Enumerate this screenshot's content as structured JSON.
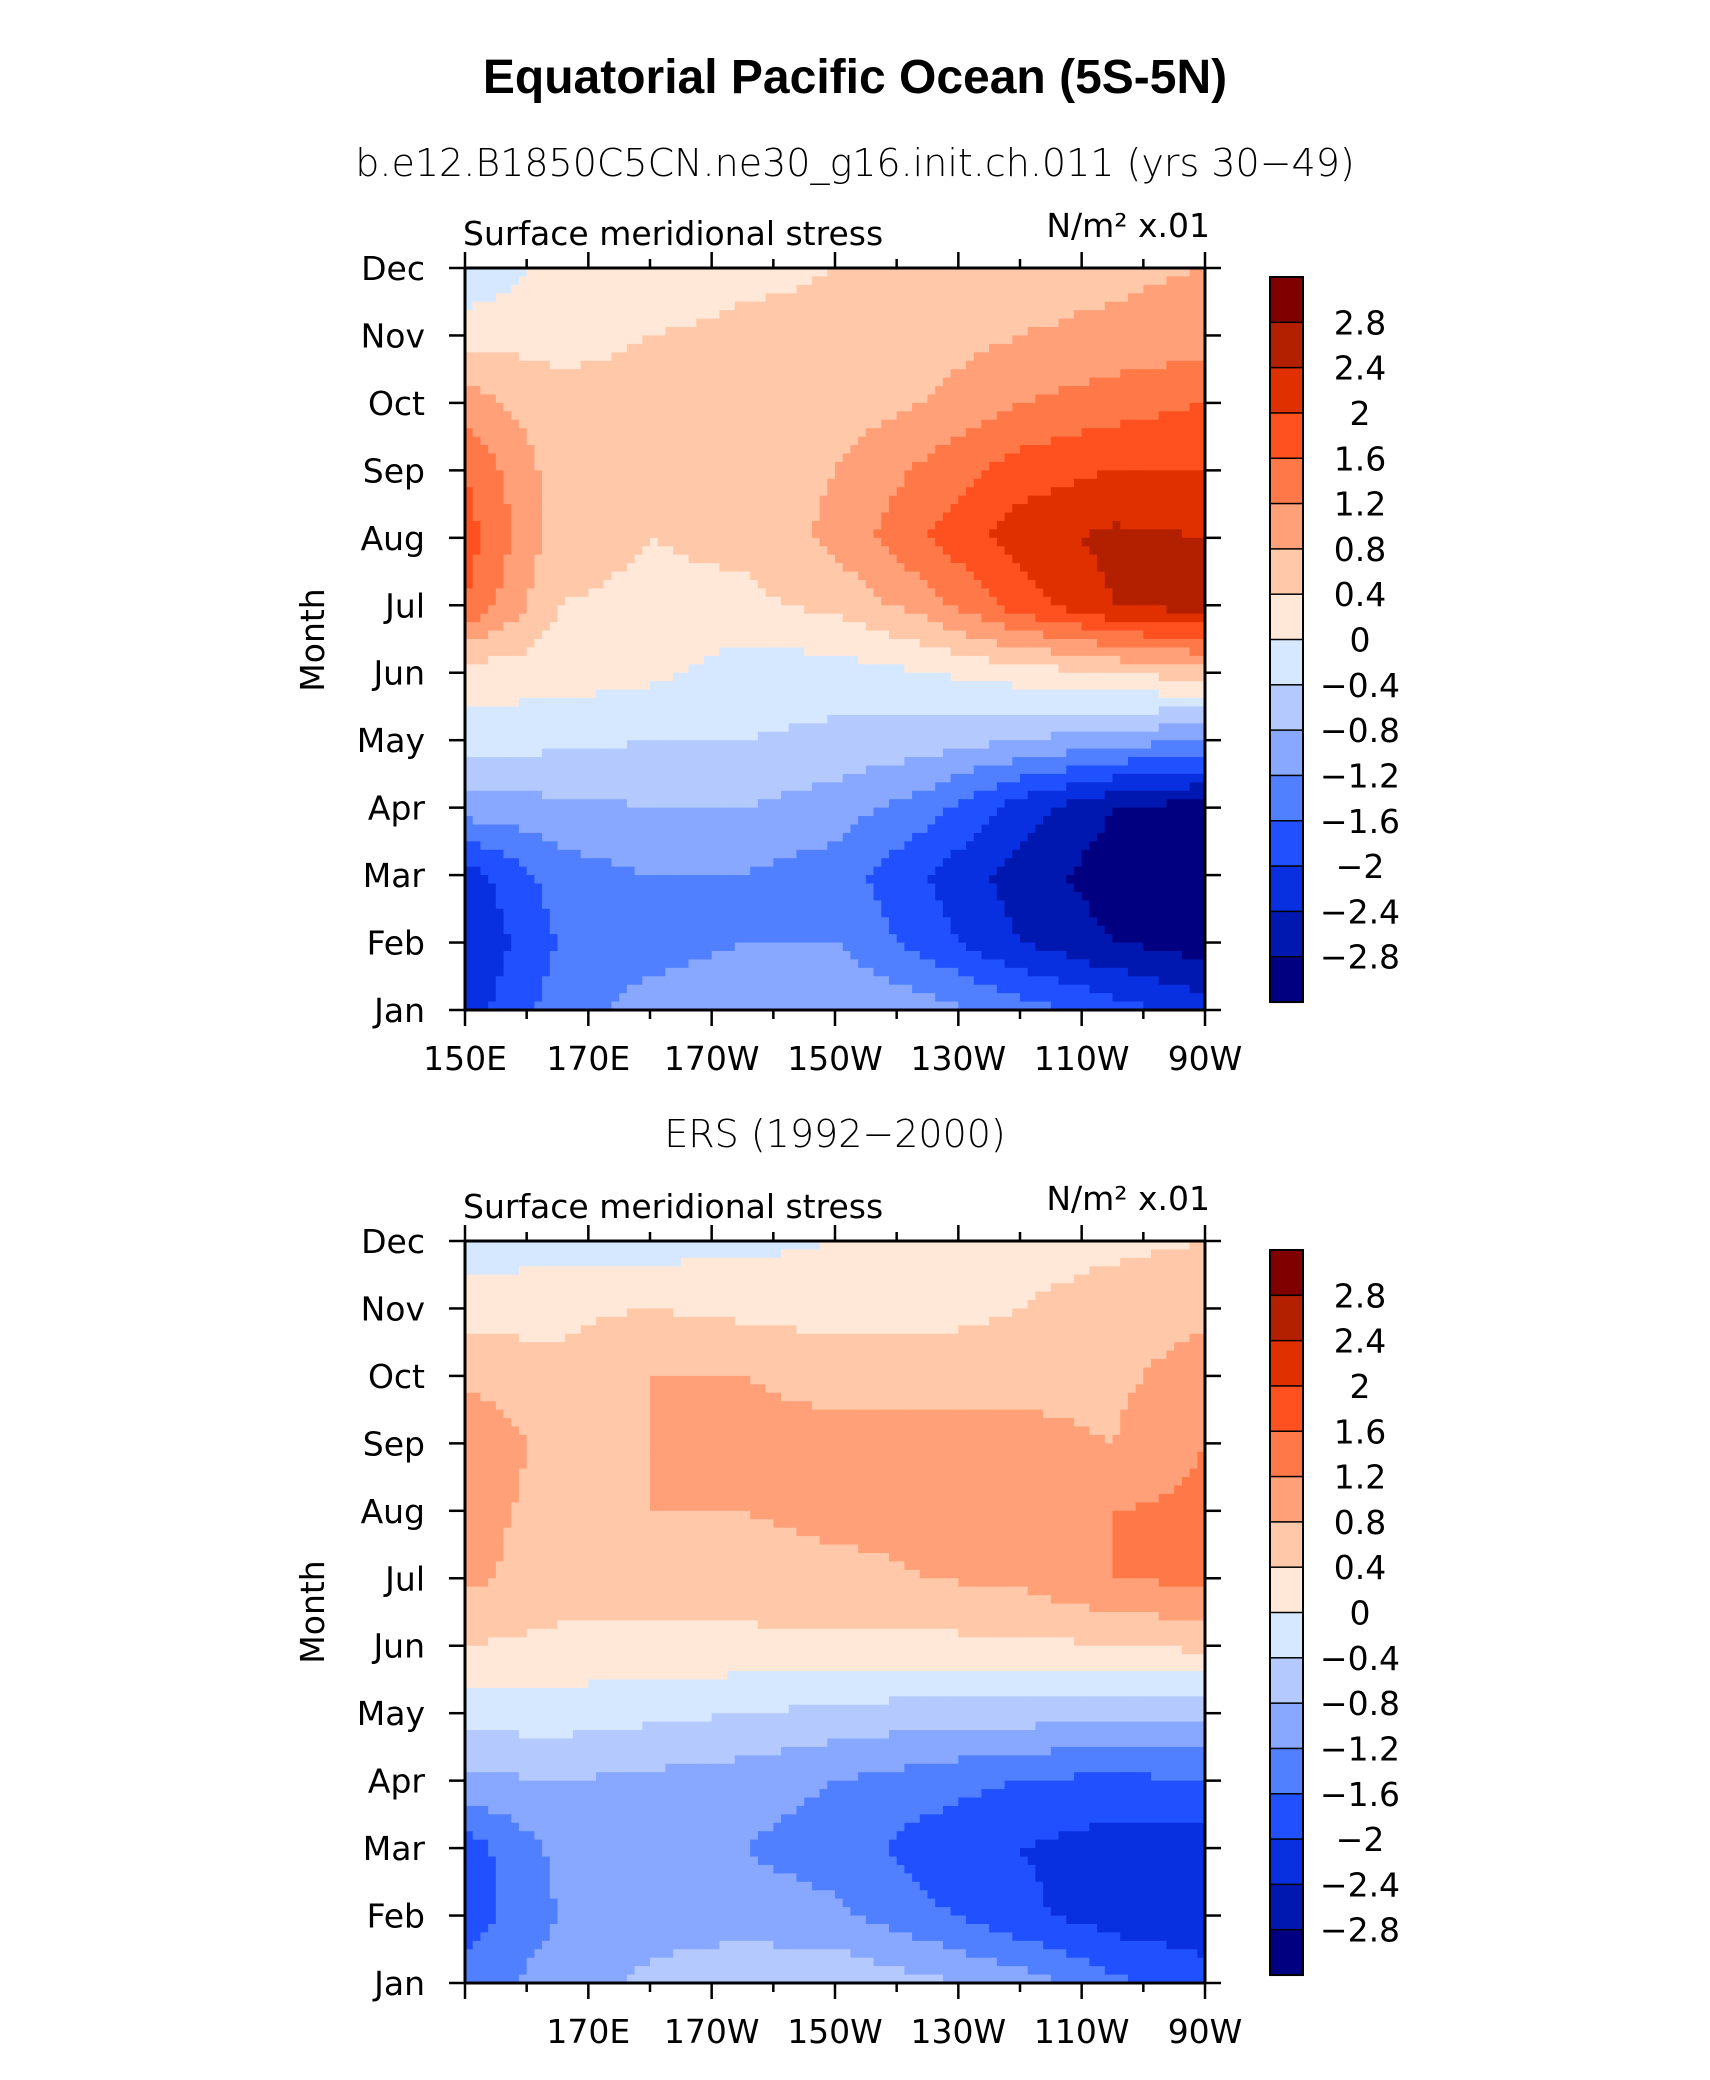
{
  "figure": {
    "title": "Equatorial Pacific Ocean (5S-5N)",
    "colors": [
      "#800000",
      "#b22000",
      "#e03000",
      "#ff5020",
      "#ff7848",
      "#ffa078",
      "#ffc8a8",
      "#ffe8d8",
      "#d6e8ff",
      "#b4caff",
      "#88a8ff",
      "#5080ff",
      "#2050ff",
      "#0830e0",
      "#0018b0",
      "#000080"
    ]
  },
  "chart_data": [
    {
      "type": "heatmap",
      "title": "b.e12.B1850C5CN.ne30_g16.init.ch.011 (yrs 30−49)",
      "left_label": "Surface meridional stress",
      "right_label": "N/m² x.01",
      "ylabel": "Month",
      "x_tick_labels": [
        "150E",
        "170E",
        "170W",
        "150W",
        "130W",
        "110W",
        "90W"
      ],
      "x_tick_values": [
        150,
        170,
        190,
        210,
        230,
        250,
        270
      ],
      "xlim": [
        150,
        270
      ],
      "y_tick_labels": [
        "Jan",
        "Feb",
        "Mar",
        "Apr",
        "May",
        "Jun",
        "Jul",
        "Aug",
        "Sep",
        "Oct",
        "Nov",
        "Dec"
      ],
      "ylim": [
        1,
        12
      ],
      "colorbar_levels": [
        "2.8",
        "2.4",
        "2",
        "1.6",
        "1.2",
        "0.8",
        "0.4",
        "0",
        "−0.4",
        "−0.8",
        "−1.2",
        "−1.6",
        "−2",
        "−2.4",
        "−2.8"
      ],
      "grid_x": [
        150,
        165,
        180,
        195,
        210,
        225,
        240,
        255,
        270
      ],
      "grid_y": [
        1,
        2,
        3,
        4,
        5,
        6,
        7,
        8,
        9,
        10,
        11,
        12
      ],
      "z": [
        [
          -2.2,
          -1.4,
          -1.0,
          -0.8,
          -0.8,
          -1.0,
          -1.4,
          -1.8,
          -2.2
        ],
        [
          -2.4,
          -1.6,
          -1.4,
          -1.2,
          -1.2,
          -1.8,
          -2.4,
          -2.8,
          -3.0
        ],
        [
          -2.2,
          -1.4,
          -1.2,
          -1.2,
          -1.4,
          -2.0,
          -2.6,
          -3.0,
          -3.2
        ],
        [
          -1.0,
          -0.9,
          -0.8,
          -0.8,
          -1.0,
          -1.4,
          -2.2,
          -2.8,
          -3.0
        ],
        [
          -0.2,
          -0.3,
          -0.4,
          -0.4,
          -0.5,
          -0.6,
          -0.8,
          -1.0,
          -1.2
        ],
        [
          0.2,
          0.2,
          0.1,
          -0.2,
          -0.2,
          0.0,
          0.2,
          0.4,
          0.6
        ],
        [
          1.6,
          0.4,
          0.3,
          0.3,
          0.5,
          1.0,
          1.8,
          2.4,
          2.6
        ],
        [
          1.8,
          0.6,
          0.4,
          0.5,
          0.9,
          1.6,
          2.2,
          2.5,
          2.4
        ],
        [
          1.6,
          0.6,
          0.4,
          0.5,
          0.8,
          1.3,
          1.8,
          2.0,
          2.0
        ],
        [
          1.0,
          0.5,
          0.5,
          0.5,
          0.6,
          0.8,
          1.2,
          1.4,
          1.6
        ],
        [
          0.2,
          0.3,
          0.4,
          0.5,
          0.5,
          0.6,
          0.8,
          0.9,
          1.0
        ],
        [
          -0.3,
          0.1,
          0.1,
          0.3,
          0.4,
          0.5,
          0.6,
          0.7,
          0.8
        ]
      ]
    },
    {
      "type": "heatmap",
      "title": "ERS (1992−2000)",
      "left_label": "Surface meridional stress",
      "right_label": "N/m² x.01",
      "ylabel": "Month",
      "x_tick_labels": [
        "170E",
        "170W",
        "150W",
        "130W",
        "110W",
        "90W"
      ],
      "x_tick_values": [
        170,
        190,
        210,
        230,
        250,
        270
      ],
      "xlim": [
        150,
        270
      ],
      "y_tick_labels": [
        "Jan",
        "Feb",
        "Mar",
        "Apr",
        "May",
        "Jun",
        "Jul",
        "Aug",
        "Sep",
        "Oct",
        "Nov",
        "Dec"
      ],
      "ylim": [
        1,
        12
      ],
      "colorbar_levels": [
        "2.8",
        "2.4",
        "2",
        "1.6",
        "1.2",
        "0.8",
        "0.4",
        "0",
        "−0.4",
        "−0.8",
        "−1.2",
        "−1.6",
        "−2",
        "−2.4",
        "−2.8"
      ],
      "grid_x": [
        150,
        165,
        180,
        195,
        210,
        225,
        240,
        255,
        270
      ],
      "grid_y": [
        1,
        2,
        3,
        4,
        5,
        6,
        7,
        8,
        9,
        10,
        11,
        12
      ],
      "z": [
        [
          -1.4,
          -1.0,
          -0.7,
          -0.5,
          -0.5,
          -0.7,
          -1.0,
          -1.5,
          -1.8
        ],
        [
          -1.8,
          -1.2,
          -1.0,
          -1.0,
          -1.1,
          -1.5,
          -1.9,
          -2.2,
          -2.3
        ],
        [
          -1.8,
          -1.1,
          -1.0,
          -1.2,
          -1.4,
          -1.8,
          -2.0,
          -2.2,
          -2.3
        ],
        [
          -0.9,
          -0.8,
          -0.9,
          -1.0,
          -1.2,
          -1.4,
          -1.6,
          -1.7,
          -1.6
        ],
        [
          -0.2,
          -0.2,
          -0.3,
          -0.4,
          -0.5,
          -0.6,
          -0.6,
          -0.7,
          -0.7
        ],
        [
          0.4,
          0.3,
          0.3,
          0.3,
          0.3,
          0.3,
          0.3,
          0.4,
          0.5
        ],
        [
          0.9,
          0.6,
          0.6,
          0.6,
          0.7,
          0.8,
          0.9,
          1.2,
          1.3
        ],
        [
          1.0,
          0.6,
          0.8,
          0.8,
          0.9,
          0.9,
          0.9,
          1.2,
          1.3
        ],
        [
          1.2,
          0.6,
          0.8,
          0.9,
          0.9,
          0.9,
          0.9,
          0.8,
          1.2
        ],
        [
          0.7,
          0.5,
          0.8,
          0.8,
          0.7,
          0.7,
          0.7,
          0.7,
          1.0
        ],
        [
          0.2,
          0.3,
          0.4,
          0.3,
          0.2,
          0.2,
          0.4,
          0.6,
          0.7
        ],
        [
          -0.2,
          -0.2,
          -0.2,
          -0.1,
          0.0,
          0.1,
          0.2,
          0.3,
          0.4
        ]
      ]
    }
  ]
}
